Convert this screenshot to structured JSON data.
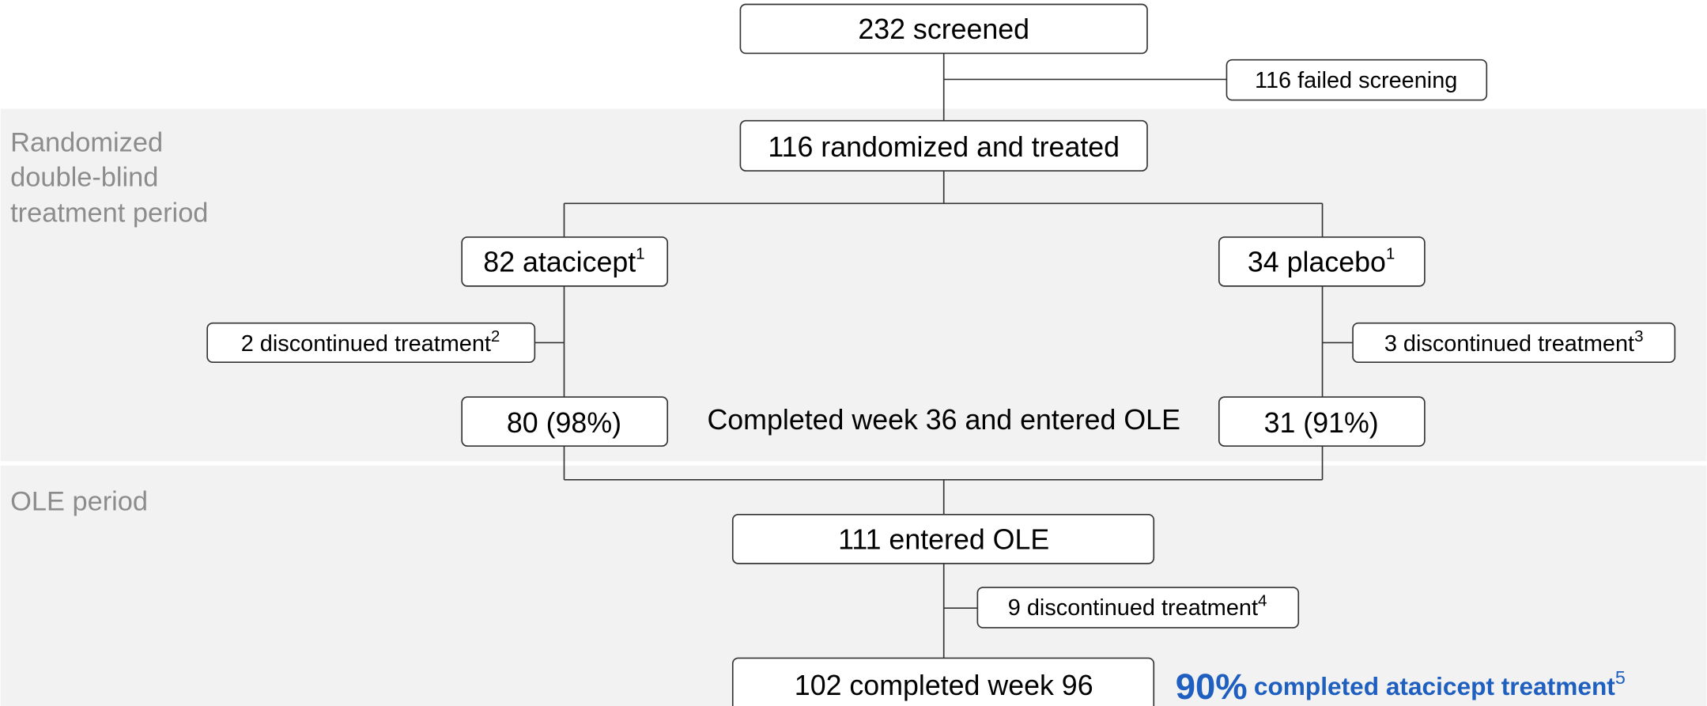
{
  "periods": {
    "randomized": [
      "Randomized",
      "double-blind",
      "treatment period"
    ],
    "ole": "OLE period"
  },
  "nodes": {
    "screened": {
      "label": "232 screened"
    },
    "failed": {
      "label": "116 failed screening"
    },
    "randomized": {
      "label": "116 randomized and treated"
    },
    "atacicept": {
      "label": "82 atacicept",
      "note": "1"
    },
    "placebo": {
      "label": "34 placebo",
      "note": "1"
    },
    "disc_atacicept": {
      "label": "2 discontinued treatment",
      "note": "2"
    },
    "disc_placebo": {
      "label": "3 discontinued treatment",
      "note": "3"
    },
    "comp_atacicept": {
      "label": "80 (98%)"
    },
    "comp_placebo": {
      "label": "31 (91%)"
    },
    "completed36": {
      "label": "Completed week 36 and entered OLE"
    },
    "entered_ole": {
      "label": "111 entered OLE"
    },
    "disc_ole": {
      "label": "9 discontinued treatment",
      "note": "4"
    },
    "completed96": {
      "label": "102 completed week 96"
    }
  },
  "callout": {
    "percent": "90%",
    "text": "completed atacicept treatment",
    "note": "5"
  }
}
